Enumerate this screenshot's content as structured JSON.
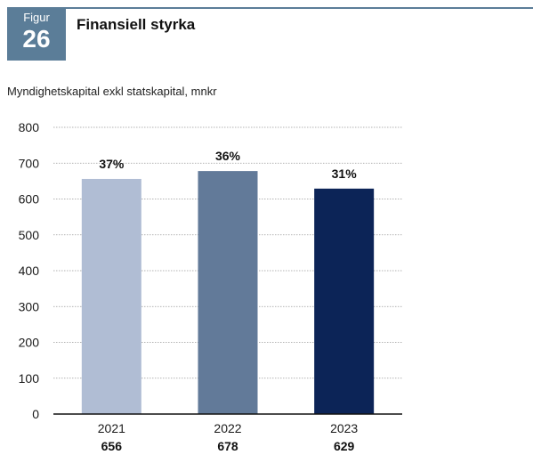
{
  "figure": {
    "word": "Figur",
    "number": "26",
    "title": "Finansiell styrka"
  },
  "chart_data": {
    "type": "bar",
    "subtitle": "Myndighetskapital exkl statskapital, mnkr",
    "categories": [
      "2021",
      "2022",
      "2023"
    ],
    "values": [
      656,
      678,
      629
    ],
    "value_labels": [
      "656",
      "678",
      "629"
    ],
    "bar_labels": [
      "37%",
      "36%",
      "31%"
    ],
    "bar_colors": [
      "#b0bdd4",
      "#627a99",
      "#0c2457"
    ],
    "ylim": [
      0,
      800
    ],
    "yticks": [
      0,
      100,
      200,
      300,
      400,
      500,
      600,
      700,
      800
    ],
    "grid": true
  }
}
